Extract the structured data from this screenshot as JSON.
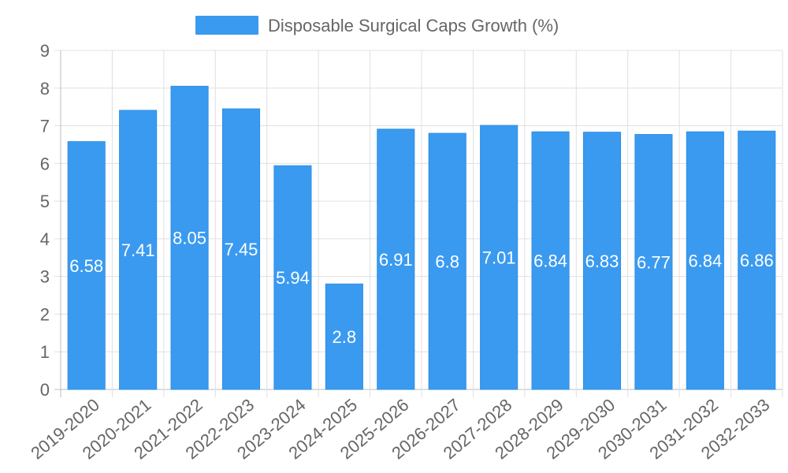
{
  "chart_data": {
    "type": "bar",
    "categories": [
      "2019-2020",
      "2020-2021",
      "2021-2022",
      "2022-2023",
      "2023-2024",
      "2024-2025",
      "2025-2026",
      "2026-2027",
      "2027-2028",
      "2028-2029",
      "2029-2030",
      "2030-2031",
      "2031-2032",
      "2032-2033"
    ],
    "series": [
      {
        "name": "Disposable Surgical Caps Growth (%)",
        "values": [
          6.58,
          7.41,
          8.05,
          7.45,
          5.94,
          2.8,
          6.91,
          6.8,
          7.01,
          6.84,
          6.83,
          6.77,
          6.84,
          6.86
        ],
        "color": "#3a9af0"
      }
    ],
    "ylim": [
      0,
      9
    ],
    "yticks": [
      0,
      1,
      2,
      3,
      4,
      5,
      6,
      7,
      8,
      9
    ],
    "grid": true,
    "legend_position": "top-center",
    "title": "",
    "xlabel": "",
    "ylabel": ""
  }
}
